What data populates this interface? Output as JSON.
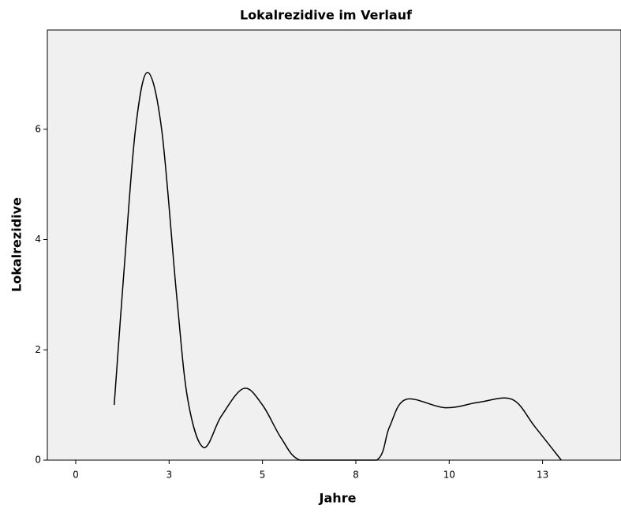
{
  "chart_data": {
    "type": "line",
    "title": "Lokalrezidive im Verlauf",
    "x_label": "Jahre",
    "y_label": "Lokalrezidive",
    "x": [
      1.03,
      1.3,
      1.6,
      1.92,
      2.3,
      2.7,
      3.0,
      3.42,
      3.9,
      4.5,
      5.0,
      5.5,
      6.0,
      7.0,
      8.06,
      8.4,
      8.84,
      9.9,
      10.8,
      11.69,
      12.3,
      13.0
    ],
    "series": [
      {
        "name": "Lokalrezidive",
        "color": "#000000",
        "values": [
          1.0,
          3.5,
          6.0,
          7.03,
          6.0,
          3.0,
          1.1,
          0.23,
          0.8,
          1.3,
          1.0,
          0.4,
          0,
          0,
          0,
          0.6,
          1.1,
          0.95,
          1.05,
          1.1,
          0.6,
          0
        ]
      }
    ],
    "xlim": [
      -0.76,
      14.6
    ],
    "xticks": [
      0,
      {
        "value": 2.5,
        "label": "3"
      },
      5,
      {
        "value": 7.5,
        "label": "8"
      },
      10,
      {
        "value": 12.5,
        "label": "13"
      }
    ],
    "ylim": [
      0,
      7.8
    ],
    "yticks": [
      0,
      2,
      4,
      6
    ],
    "grid": false,
    "background": "#f0f0f0"
  }
}
